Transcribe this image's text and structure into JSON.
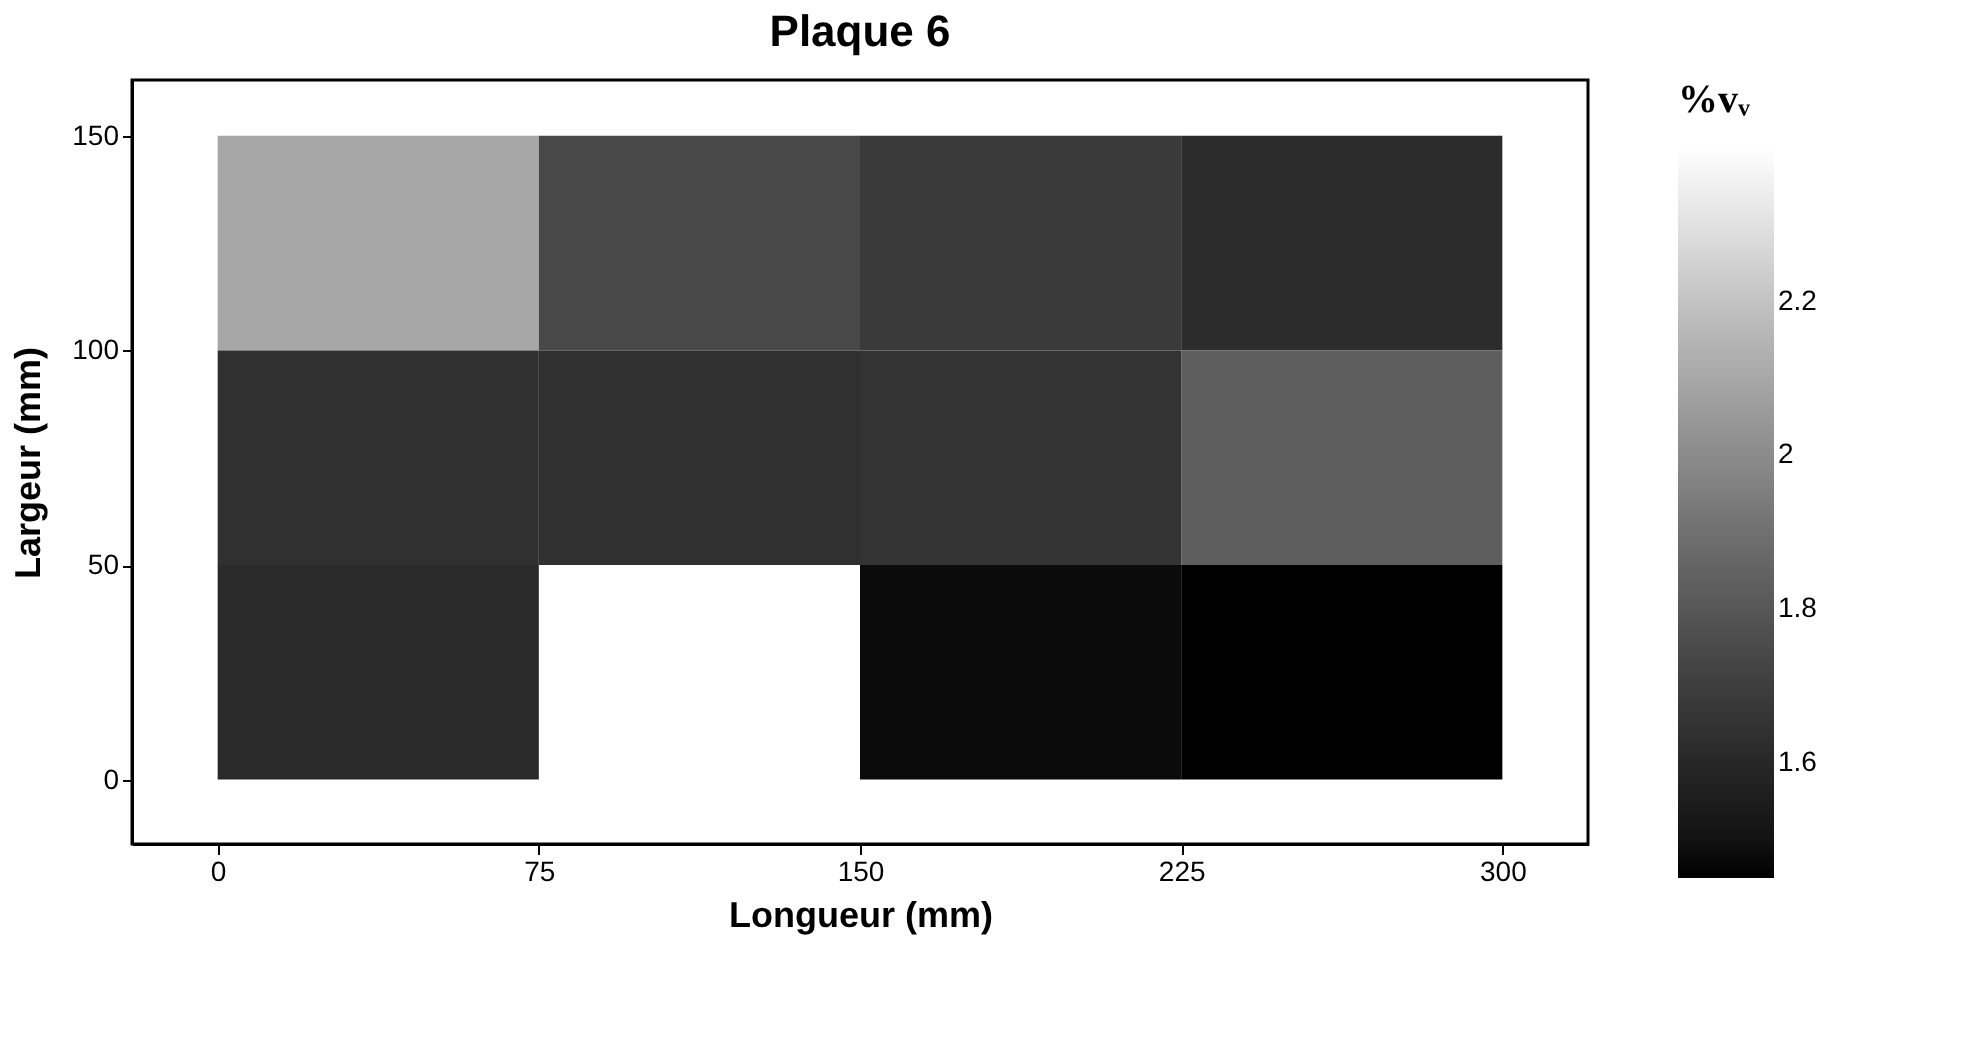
{
  "chart_data": {
    "type": "heatmap",
    "title": "Plaque 6",
    "xlabel": "Longueur (mm)",
    "ylabel": "Largeur (mm)",
    "clabel": "%vᵥ",
    "x": [
      37.5,
      112.5,
      187.5,
      262.5
    ],
    "y": [
      125,
      75,
      25
    ],
    "cells": [
      [
        2.1,
        1.74,
        1.68,
        1.62
      ],
      [
        1.64,
        1.64,
        1.65,
        1.83
      ],
      [
        1.61,
        null,
        1.48,
        1.45
      ]
    ],
    "xlim": [
      -20,
      320
    ],
    "xticks": [
      0,
      75,
      150,
      225,
      300
    ],
    "ylim": [
      -15,
      163
    ],
    "yticks": [
      0,
      50,
      100,
      150
    ],
    "clim": [
      1.45,
      2.4
    ],
    "cticks": [
      1.6,
      1.8,
      2,
      2.2
    ],
    "grid": false
  }
}
